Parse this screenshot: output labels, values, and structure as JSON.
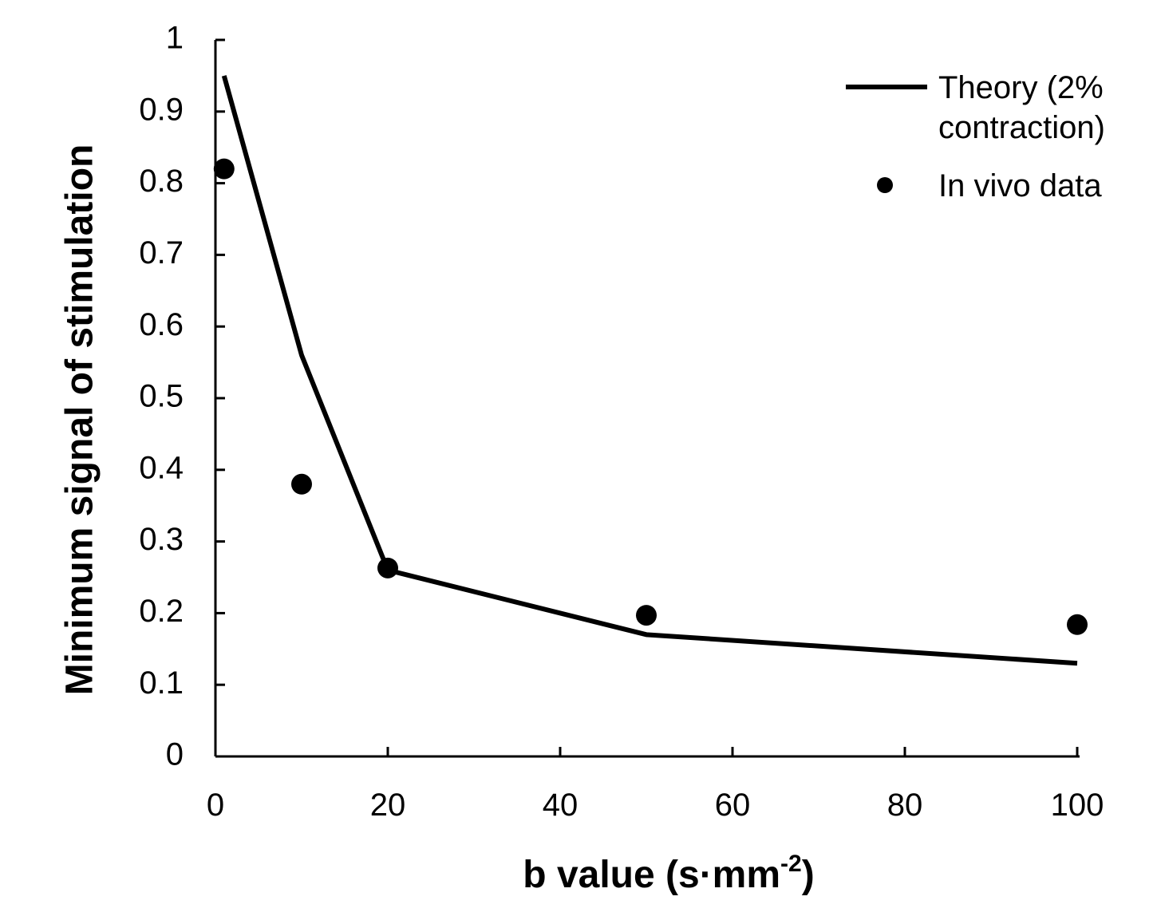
{
  "chart_data": {
    "type": "line",
    "title": "",
    "xlabel": {
      "main": "b value (s·mm",
      "sup": "-2",
      "close": ")"
    },
    "ylabel": "Minimum signal of stimulation",
    "xlim": [
      0,
      100
    ],
    "ylim": [
      0,
      1
    ],
    "x_ticks": [
      "0",
      "20",
      "40",
      "60",
      "80",
      "100"
    ],
    "y_ticks": [
      "0",
      "0.1",
      "0.2",
      "0.3",
      "0.4",
      "0.5",
      "0.6",
      "0.7",
      "0.8",
      "0.9",
      "1"
    ],
    "grid": false,
    "legend_position": "top-right",
    "series": [
      {
        "name": "Theory (2% contraction)",
        "legend_lines": [
          "Theory (2%",
          "contraction)"
        ],
        "type": "line",
        "color": "#000000",
        "x": [
          1,
          10,
          20,
          50,
          100
        ],
        "y": [
          0.95,
          0.56,
          0.26,
          0.17,
          0.13
        ]
      },
      {
        "name": "In vivo data",
        "legend_lines": [
          "In vivo data"
        ],
        "type": "scatter",
        "color": "#000000",
        "x": [
          1,
          10,
          20,
          50,
          100
        ],
        "y": [
          0.82,
          0.38,
          0.263,
          0.197,
          0.184
        ]
      }
    ]
  }
}
